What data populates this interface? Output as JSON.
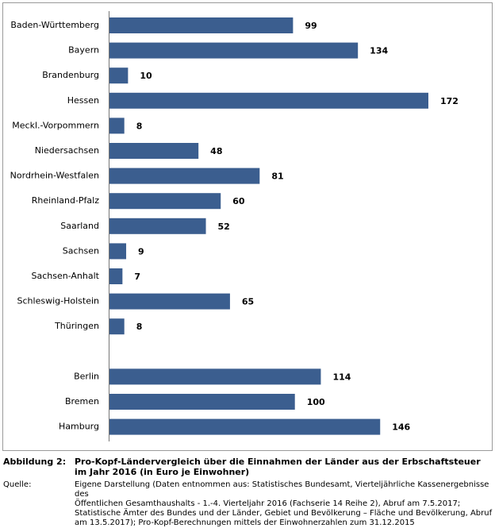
{
  "chart_data": {
    "type": "bar",
    "orientation": "horizontal",
    "color": "#3b5e8f",
    "categories": [
      "Baden-Württemberg",
      "Bayern",
      "Brandenburg",
      "Hessen",
      "Meckl.-Vorpommern",
      "Niedersachsen",
      "Nordrhein-Westfalen",
      "Rheinland-Pfalz",
      "Saarland",
      "Sachsen",
      "Sachsen-Anhalt",
      "Schleswig-Holstein",
      "Thüringen",
      null,
      "Berlin",
      "Bremen",
      "Hamburg"
    ],
    "values": [
      99,
      134,
      10,
      172,
      8,
      48,
      81,
      60,
      52,
      9,
      7,
      65,
      8,
      null,
      114,
      100,
      146
    ]
  },
  "caption": {
    "label": "Abbildung 2:",
    "lines": [
      "Pro-Kopf-Ländervergleich über die Einnahmen der Länder aus der Erbschaftsteuer",
      "im Jahr 2016 (in Euro je Einwohner)"
    ]
  },
  "source": {
    "label": "Quelle:",
    "lines": [
      "Eigene Darstellung (Daten entnommen aus: Statistisches Bundesamt, Vierteljährliche Kassenergebnisse des",
      "Öffentlichen Gesamthaushalts - 1.-4. Vierteljahr 2016 (Fachserie 14 Reihe 2), Abruf am 7.5.2017;",
      "Statistische Ämter des Bundes und der Länder, Gebiet und Bevölkerung – Fläche und Bevölkerung, Abruf",
      "am 13.5.2017); Pro-Kopf-Berechnungen mittels der Einwohnerzahlen zum 31.12.2015"
    ]
  }
}
